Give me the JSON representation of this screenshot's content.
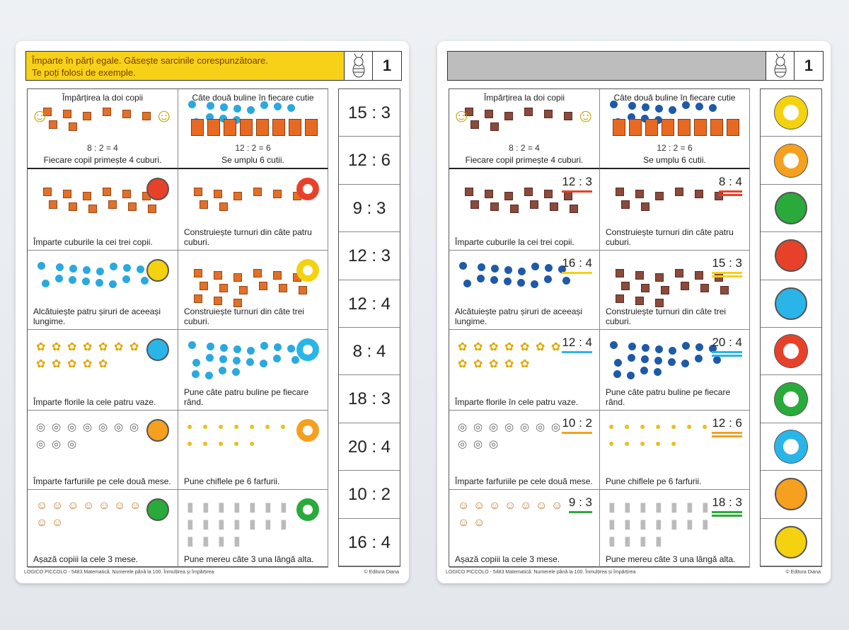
{
  "left_card": {
    "header_line1": "Împarte în părți egale. Găsește sarcinile corespunzătoare.",
    "header_line2": "Te poți folosi de exemple.",
    "card_number": "1",
    "examples": [
      {
        "title": "Împărțirea la doi copii",
        "equation": "8 : 2 = 4",
        "caption": "Fiecare copil primește 4 cuburi."
      },
      {
        "title": "Câte două buline în fiecare cutie",
        "equation": "12 : 2 = 6",
        "caption": "Se umplu 6 cutii."
      }
    ],
    "tasks": [
      {
        "caption": "Împarte cuburile la cei trei copii.",
        "marker": "circle",
        "color": "#e8412a"
      },
      {
        "caption": "Construiește turnuri din câte patru cuburi.",
        "marker": "ring",
        "color": "#e8412a"
      },
      {
        "caption": "Alcătuiește patru șiruri de aceeași lungime.",
        "marker": "circle",
        "color": "#f5d20f"
      },
      {
        "caption": "Construiește turnuri din câte trei cuburi.",
        "marker": "ring",
        "color": "#f5d20f"
      },
      {
        "caption": "Împarte florile la cele patru vaze.",
        "marker": "circle",
        "color": "#2ab5e8"
      },
      {
        "caption": "Pune câte patru buline pe fiecare rând.",
        "marker": "ring",
        "color": "#2ab5e8"
      },
      {
        "caption": "Împarte farfuriile pe cele două mese.",
        "marker": "circle",
        "color": "#f5a01f"
      },
      {
        "caption": "Pune chiflele pe 6 farfurii.",
        "marker": "ring",
        "color": "#f5a01f"
      },
      {
        "caption": "Așază copiii la cele 3 mese.",
        "marker": "circle",
        "color": "#2aaa3a"
      },
      {
        "caption": "Pune mereu câte 3 una lângă alta.",
        "marker": "ring",
        "color": "#2aaa3a"
      }
    ],
    "answers": [
      "15 : 3",
      "12 : 6",
      "9 : 3",
      "12 : 3",
      "12 : 4",
      "8 : 4",
      "18 : 3",
      "20 : 4",
      "10 : 2",
      "16 : 4"
    ],
    "footer_left": "LOGICO PICCOLO - 5483 Matematică. Numerele până la 100. Înmulțirea și împărțirea",
    "footer_right": "© Editura Diana"
  },
  "right_card": {
    "card_number": "1",
    "examples": [
      {
        "title": "Împărțirea la doi copii",
        "equation": "8 : 2 = 4",
        "caption": "Fiecare copil primește 4 cuburi."
      },
      {
        "title": "Câte două buline în fiecare cutie",
        "equation": "12 : 2 = 6",
        "caption": "Se umplu 6 cutii."
      }
    ],
    "tasks": [
      {
        "caption": "Împarte cuburile la cei trei copii.",
        "label": "12 : 3",
        "color": "#e8412a",
        "double": false
      },
      {
        "caption": "Construiește turnuri din câte patru cuburi.",
        "label": "8 : 4",
        "color": "#e8412a",
        "double": true
      },
      {
        "caption": "Alcătuiește patru șiruri de aceeași lungime.",
        "label": "16 : 4",
        "color": "#f5d20f",
        "double": false
      },
      {
        "caption": "Construiește turnuri din câte trei cuburi.",
        "label": "15 : 3",
        "color": "#f5d20f",
        "double": true
      },
      {
        "caption": "Împarte florile în cele patru vaze.",
        "label": "12 : 4",
        "color": "#2ab5e8",
        "double": false
      },
      {
        "caption": "Pune câte patru buline pe fiecare rând.",
        "label": "20 : 4",
        "color": "#2ab5e8",
        "double": true
      },
      {
        "caption": "Împarte farfuriile pe cele două mese.",
        "label": "10 : 2",
        "color": "#f5a01f",
        "double": false
      },
      {
        "caption": "Pune chiflele pe 6 farfurii.",
        "label": "12 : 6",
        "color": "#f5a01f",
        "double": true
      },
      {
        "caption": "Așază copiii la cele 3 mese.",
        "label": "9 : 3",
        "color": "#2aaa3a",
        "double": false
      },
      {
        "caption": "Pune mereu câte 3 una lângă alta.",
        "label": "18 : 3",
        "color": "#2aaa3a",
        "double": true
      }
    ],
    "right_column": [
      {
        "marker": "ring",
        "color": "#f5d20f"
      },
      {
        "marker": "ring",
        "color": "#f5a01f"
      },
      {
        "marker": "circle",
        "color": "#2aaa3a"
      },
      {
        "marker": "circle",
        "color": "#e8412a"
      },
      {
        "marker": "circle",
        "color": "#2ab5e8"
      },
      {
        "marker": "ring",
        "color": "#e8412a"
      },
      {
        "marker": "ring",
        "color": "#2aaa3a"
      },
      {
        "marker": "ring",
        "color": "#2ab5e8"
      },
      {
        "marker": "circle",
        "color": "#f5a01f"
      },
      {
        "marker": "circle",
        "color": "#f5d20f"
      }
    ],
    "footer_left": "LOGICO PICCOLO - 5483 Matematică. Numerele până la 100. Înmulțirea și împărțirea",
    "footer_right": "© Editura Diana"
  }
}
